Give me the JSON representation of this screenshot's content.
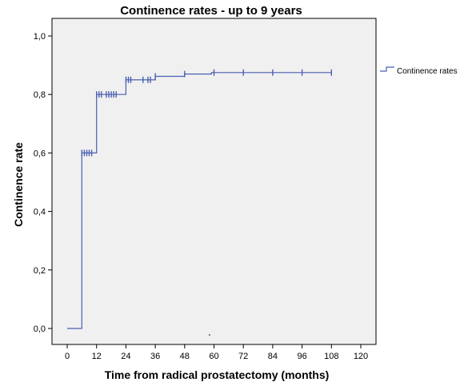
{
  "chart_data": {
    "type": "line",
    "title": "Continence rates - up to 9 years",
    "xlabel": "Time from radical prostatectomy (months)",
    "ylabel": "Continence rate",
    "xlim": [
      0,
      120
    ],
    "ylim": [
      0,
      1.0
    ],
    "x_ticks": [
      0,
      12,
      24,
      36,
      48,
      60,
      72,
      84,
      96,
      108,
      120
    ],
    "x_tick_labels": [
      "0",
      "12",
      "24",
      "36",
      "48",
      "60",
      "72",
      "84",
      "96",
      "108",
      "120"
    ],
    "y_ticks": [
      0,
      0.2,
      0.4,
      0.6,
      0.8,
      1.0
    ],
    "y_tick_labels": [
      "0,0",
      "0,2",
      "0,4",
      "0,6",
      "0,8",
      "1,0"
    ],
    "grid": false,
    "legend_position": "right",
    "colors": {
      "line": "#4a5fb0",
      "plot_bg": "#f0f0f0"
    },
    "series": [
      {
        "name": "Continence rates",
        "step_points": [
          {
            "x": 0,
            "y": 0.0
          },
          {
            "x": 6,
            "y": 0.0
          },
          {
            "x": 6,
            "y": 0.6
          },
          {
            "x": 12,
            "y": 0.6
          },
          {
            "x": 12,
            "y": 0.8
          },
          {
            "x": 24,
            "y": 0.8
          },
          {
            "x": 24,
            "y": 0.85
          },
          {
            "x": 36,
            "y": 0.85
          },
          {
            "x": 36,
            "y": 0.862
          },
          {
            "x": 48,
            "y": 0.862
          },
          {
            "x": 48,
            "y": 0.87
          },
          {
            "x": 59,
            "y": 0.87
          },
          {
            "x": 59,
            "y": 0.875
          },
          {
            "x": 108,
            "y": 0.875
          }
        ],
        "censored": [
          {
            "x": 6,
            "y": 0.6
          },
          {
            "x": 7,
            "y": 0.6
          },
          {
            "x": 8,
            "y": 0.6
          },
          {
            "x": 9,
            "y": 0.6
          },
          {
            "x": 10,
            "y": 0.6
          },
          {
            "x": 12,
            "y": 0.8
          },
          {
            "x": 13,
            "y": 0.8
          },
          {
            "x": 14,
            "y": 0.8
          },
          {
            "x": 16,
            "y": 0.8
          },
          {
            "x": 17,
            "y": 0.8
          },
          {
            "x": 18,
            "y": 0.8
          },
          {
            "x": 19,
            "y": 0.8
          },
          {
            "x": 20,
            "y": 0.8
          },
          {
            "x": 24,
            "y": 0.85
          },
          {
            "x": 25,
            "y": 0.85
          },
          {
            "x": 26,
            "y": 0.85
          },
          {
            "x": 31,
            "y": 0.85
          },
          {
            "x": 33,
            "y": 0.85
          },
          {
            "x": 34,
            "y": 0.85
          },
          {
            "x": 36,
            "y": 0.862
          },
          {
            "x": 48,
            "y": 0.87
          },
          {
            "x": 60,
            "y": 0.875
          },
          {
            "x": 72,
            "y": 0.875
          },
          {
            "x": 84,
            "y": 0.875
          },
          {
            "x": 96,
            "y": 0.875
          },
          {
            "x": 108,
            "y": 0.875
          }
        ]
      }
    ]
  }
}
